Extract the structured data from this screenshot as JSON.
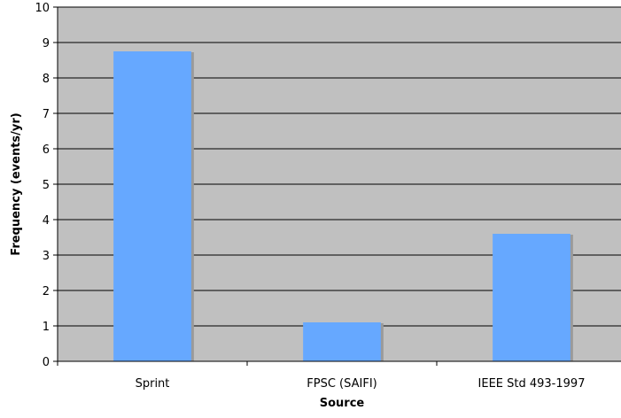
{
  "chart_data": {
    "type": "bar",
    "title": "",
    "xlabel": "Source",
    "ylabel": "Frequency (events/yr)",
    "categories": [
      "Sprint",
      "FPSC (SAIFI)",
      "IEEE Std 493-1997"
    ],
    "values": [
      8.75,
      1.1,
      3.6
    ],
    "ylim": [
      0,
      10
    ],
    "yticks": [
      "0",
      "1",
      "2",
      "3",
      "4",
      "5",
      "6",
      "7",
      "8",
      "9",
      "10"
    ],
    "grid": true,
    "legend": "none",
    "colors": {
      "bar": "#66a8ff",
      "bar_shadow": "#9a9a9a",
      "plot_background": "#c0c0c0",
      "gridline": "#000000"
    }
  }
}
